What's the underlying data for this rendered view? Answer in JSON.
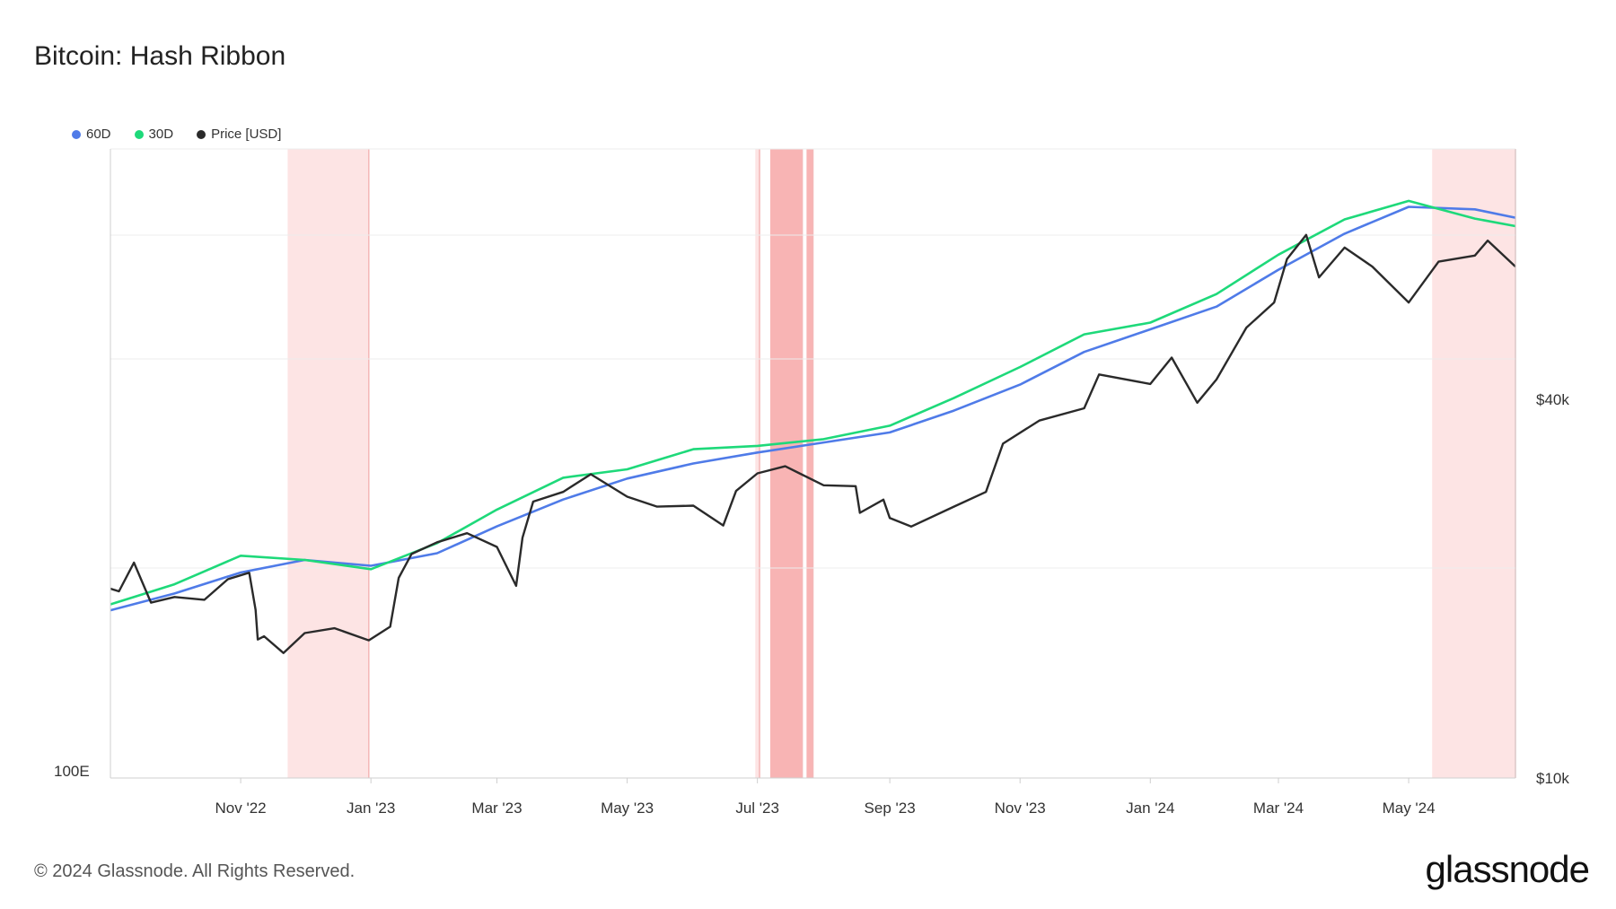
{
  "title": "Bitcoin: Hash Ribbon",
  "footer": "© 2024 Glassnode. All Rights Reserved.",
  "brand": "glassnode",
  "colors": {
    "series_60d": "#4f7be8",
    "series_30d": "#1ed97a",
    "price": "#2a2a2a",
    "band_light": "#fde4e4",
    "band_dark": "#f8b4b4"
  },
  "chart_data": {
    "type": "line",
    "x_ticks": [
      "Nov '22",
      "Jan '23",
      "Mar '23",
      "May '23",
      "Jul '23",
      "Sep '23",
      "Nov '23",
      "Jan '24",
      "Mar '24",
      "May '24"
    ],
    "left_axis_label": "100E",
    "right_axis_labels": [
      "$40k",
      "$10k"
    ],
    "right_axis_scale": "log",
    "grid": true,
    "legend_position": "top-left",
    "series": [
      {
        "name": "60D",
        "color": "#4f7be8",
        "x": [
          "2022-09-01",
          "2022-10-01",
          "2022-11-01",
          "2022-12-01",
          "2023-01-01",
          "2023-02-01",
          "2023-03-01",
          "2023-04-01",
          "2023-05-01",
          "2023-06-01",
          "2023-07-01",
          "2023-08-01",
          "2023-09-01",
          "2023-10-01",
          "2023-11-01",
          "2023-12-01",
          "2024-01-01",
          "2024-02-01",
          "2024-03-01",
          "2024-04-01",
          "2024-05-01",
          "2024-06-01",
          "2024-06-20"
        ],
        "y": [
          20.0,
          22.0,
          24.5,
          26.0,
          25.3,
          26.8,
          30.0,
          33.2,
          35.7,
          37.5,
          38.8,
          40.0,
          41.2,
          43.8,
          46.9,
          50.8,
          53.5,
          56.2,
          60.6,
          64.9,
          68.1,
          67.8,
          66.8
        ]
      },
      {
        "name": "30D",
        "color": "#1ed97a",
        "x": [
          "2022-09-01",
          "2022-10-01",
          "2022-11-01",
          "2022-12-01",
          "2023-01-01",
          "2023-02-01",
          "2023-03-01",
          "2023-04-01",
          "2023-05-01",
          "2023-06-01",
          "2023-07-01",
          "2023-08-01",
          "2023-09-01",
          "2023-10-01",
          "2023-11-01",
          "2023-12-01",
          "2024-01-01",
          "2024-02-01",
          "2024-03-01",
          "2024-04-01",
          "2024-05-01",
          "2024-06-01",
          "2024-06-20"
        ],
        "y": [
          20.7,
          23.1,
          26.5,
          26.0,
          24.9,
          28.0,
          32.0,
          35.8,
          36.8,
          39.2,
          39.6,
          40.4,
          42.0,
          45.3,
          49.0,
          52.9,
          54.3,
          57.7,
          62.4,
          66.6,
          68.8,
          66.7,
          65.8
        ]
      },
      {
        "name": "Price [USD]",
        "color": "#2a2a2a",
        "x": [
          "2022-09-01",
          "2022-09-05",
          "2022-09-12",
          "2022-09-20",
          "2022-10-01",
          "2022-10-15",
          "2022-10-26",
          "2022-11-05",
          "2022-11-08",
          "2022-11-09",
          "2022-11-12",
          "2022-11-21",
          "2022-12-01",
          "2022-12-15",
          "2022-12-31",
          "2023-01-10",
          "2023-01-14",
          "2023-01-20",
          "2023-02-01",
          "2023-02-15",
          "2023-03-01",
          "2023-03-10",
          "2023-03-13",
          "2023-03-18",
          "2023-04-01",
          "2023-04-14",
          "2023-05-01",
          "2023-05-15",
          "2023-06-01",
          "2023-06-15",
          "2023-06-21",
          "2023-07-01",
          "2023-07-14",
          "2023-08-01",
          "2023-08-16",
          "2023-08-18",
          "2023-08-29",
          "2023-09-01",
          "2023-09-11",
          "2023-10-01",
          "2023-10-16",
          "2023-10-24",
          "2023-11-10",
          "2023-12-01",
          "2023-12-08",
          "2024-01-01",
          "2024-01-11",
          "2024-01-23",
          "2024-02-01",
          "2024-02-15",
          "2024-02-28",
          "2024-03-05",
          "2024-03-14",
          "2024-03-20",
          "2024-04-01",
          "2024-04-14",
          "2024-05-01",
          "2024-05-15",
          "2024-06-01",
          "2024-06-07",
          "2024-06-20"
        ],
        "y": [
          20000,
          19800,
          22000,
          19000,
          19400,
          19200,
          20700,
          21200,
          18500,
          16600,
          16800,
          15800,
          17000,
          17300,
          16550,
          17400,
          20800,
          22700,
          23700,
          24500,
          23300,
          20200,
          24100,
          27500,
          28500,
          30400,
          28000,
          27000,
          27100,
          25200,
          28600,
          30500,
          31300,
          29200,
          29100,
          26400,
          27700,
          25900,
          25100,
          27000,
          28500,
          34000,
          37000,
          38700,
          43800,
          42300,
          46600,
          39500,
          43000,
          52000,
          57000,
          66800,
          73000,
          62500,
          69700,
          65000,
          57000,
          66200,
          67700,
          71500,
          65000
        ]
      }
    ],
    "highlight_bands": [
      {
        "start": "2022-11-23",
        "end": "2022-12-31",
        "style": "light"
      },
      {
        "start": "2023-06-30",
        "end": "2023-07-02",
        "style": "light"
      },
      {
        "start": "2023-07-07",
        "end": "2023-07-22",
        "style": "dark"
      },
      {
        "start": "2023-07-24",
        "end": "2023-07-27",
        "style": "dark"
      },
      {
        "start": "2024-05-12",
        "end": "2024-06-20",
        "style": "light"
      }
    ]
  }
}
